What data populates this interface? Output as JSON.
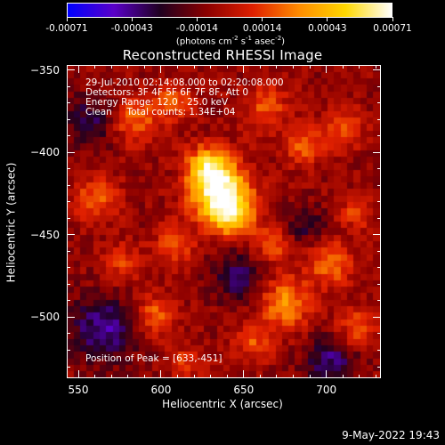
{
  "colorbar": {
    "tick_labels": [
      "-0.00071",
      "-0.00043",
      "-0.00014",
      "0.00014",
      "0.00043",
      "0.00071"
    ],
    "unit_prefix": "(photons cm",
    "unit_exp1": "-2",
    "unit_mid": " s",
    "unit_exp2": "-1",
    "unit_mid2": " asec",
    "unit_exp3": "-2",
    "unit_suffix": ")",
    "colors": [
      "#0000ff",
      "#5a00c8",
      "#200020",
      "#8b0000",
      "#e02000",
      "#ff8c00",
      "#ffd800",
      "#ffffff"
    ]
  },
  "title": "Reconstructed RHESSI Image",
  "annotations": {
    "time_range": "29-Jul-2010 02:14:08.000 to 02:20:08.000",
    "detectors": "Detectors: 3F 4F 5F 6F 7F 8F, Att 0",
    "energy": "Energy Range: 12.0 - 25.0 keV",
    "clean": "Clean     Total counts: 1.34E+04",
    "peak": "Position of Peak = [633,-451]"
  },
  "axes": {
    "xlabel": "Heliocentric X (arcsec)",
    "ylabel": "Heliocentric Y (arcsec)",
    "x_tick_labels": [
      "550",
      "600",
      "650",
      "700"
    ],
    "x_tick_values": [
      550,
      600,
      650,
      700
    ],
    "y_tick_labels": [
      "−350",
      "−400",
      "−450",
      "−500"
    ],
    "y_tick_values": [
      -350,
      -400,
      -450,
      -500
    ],
    "xlim": [
      543,
      733
    ],
    "ylim": [
      -537,
      -347
    ]
  },
  "timestamp": "9-May-2022 19:43"
}
